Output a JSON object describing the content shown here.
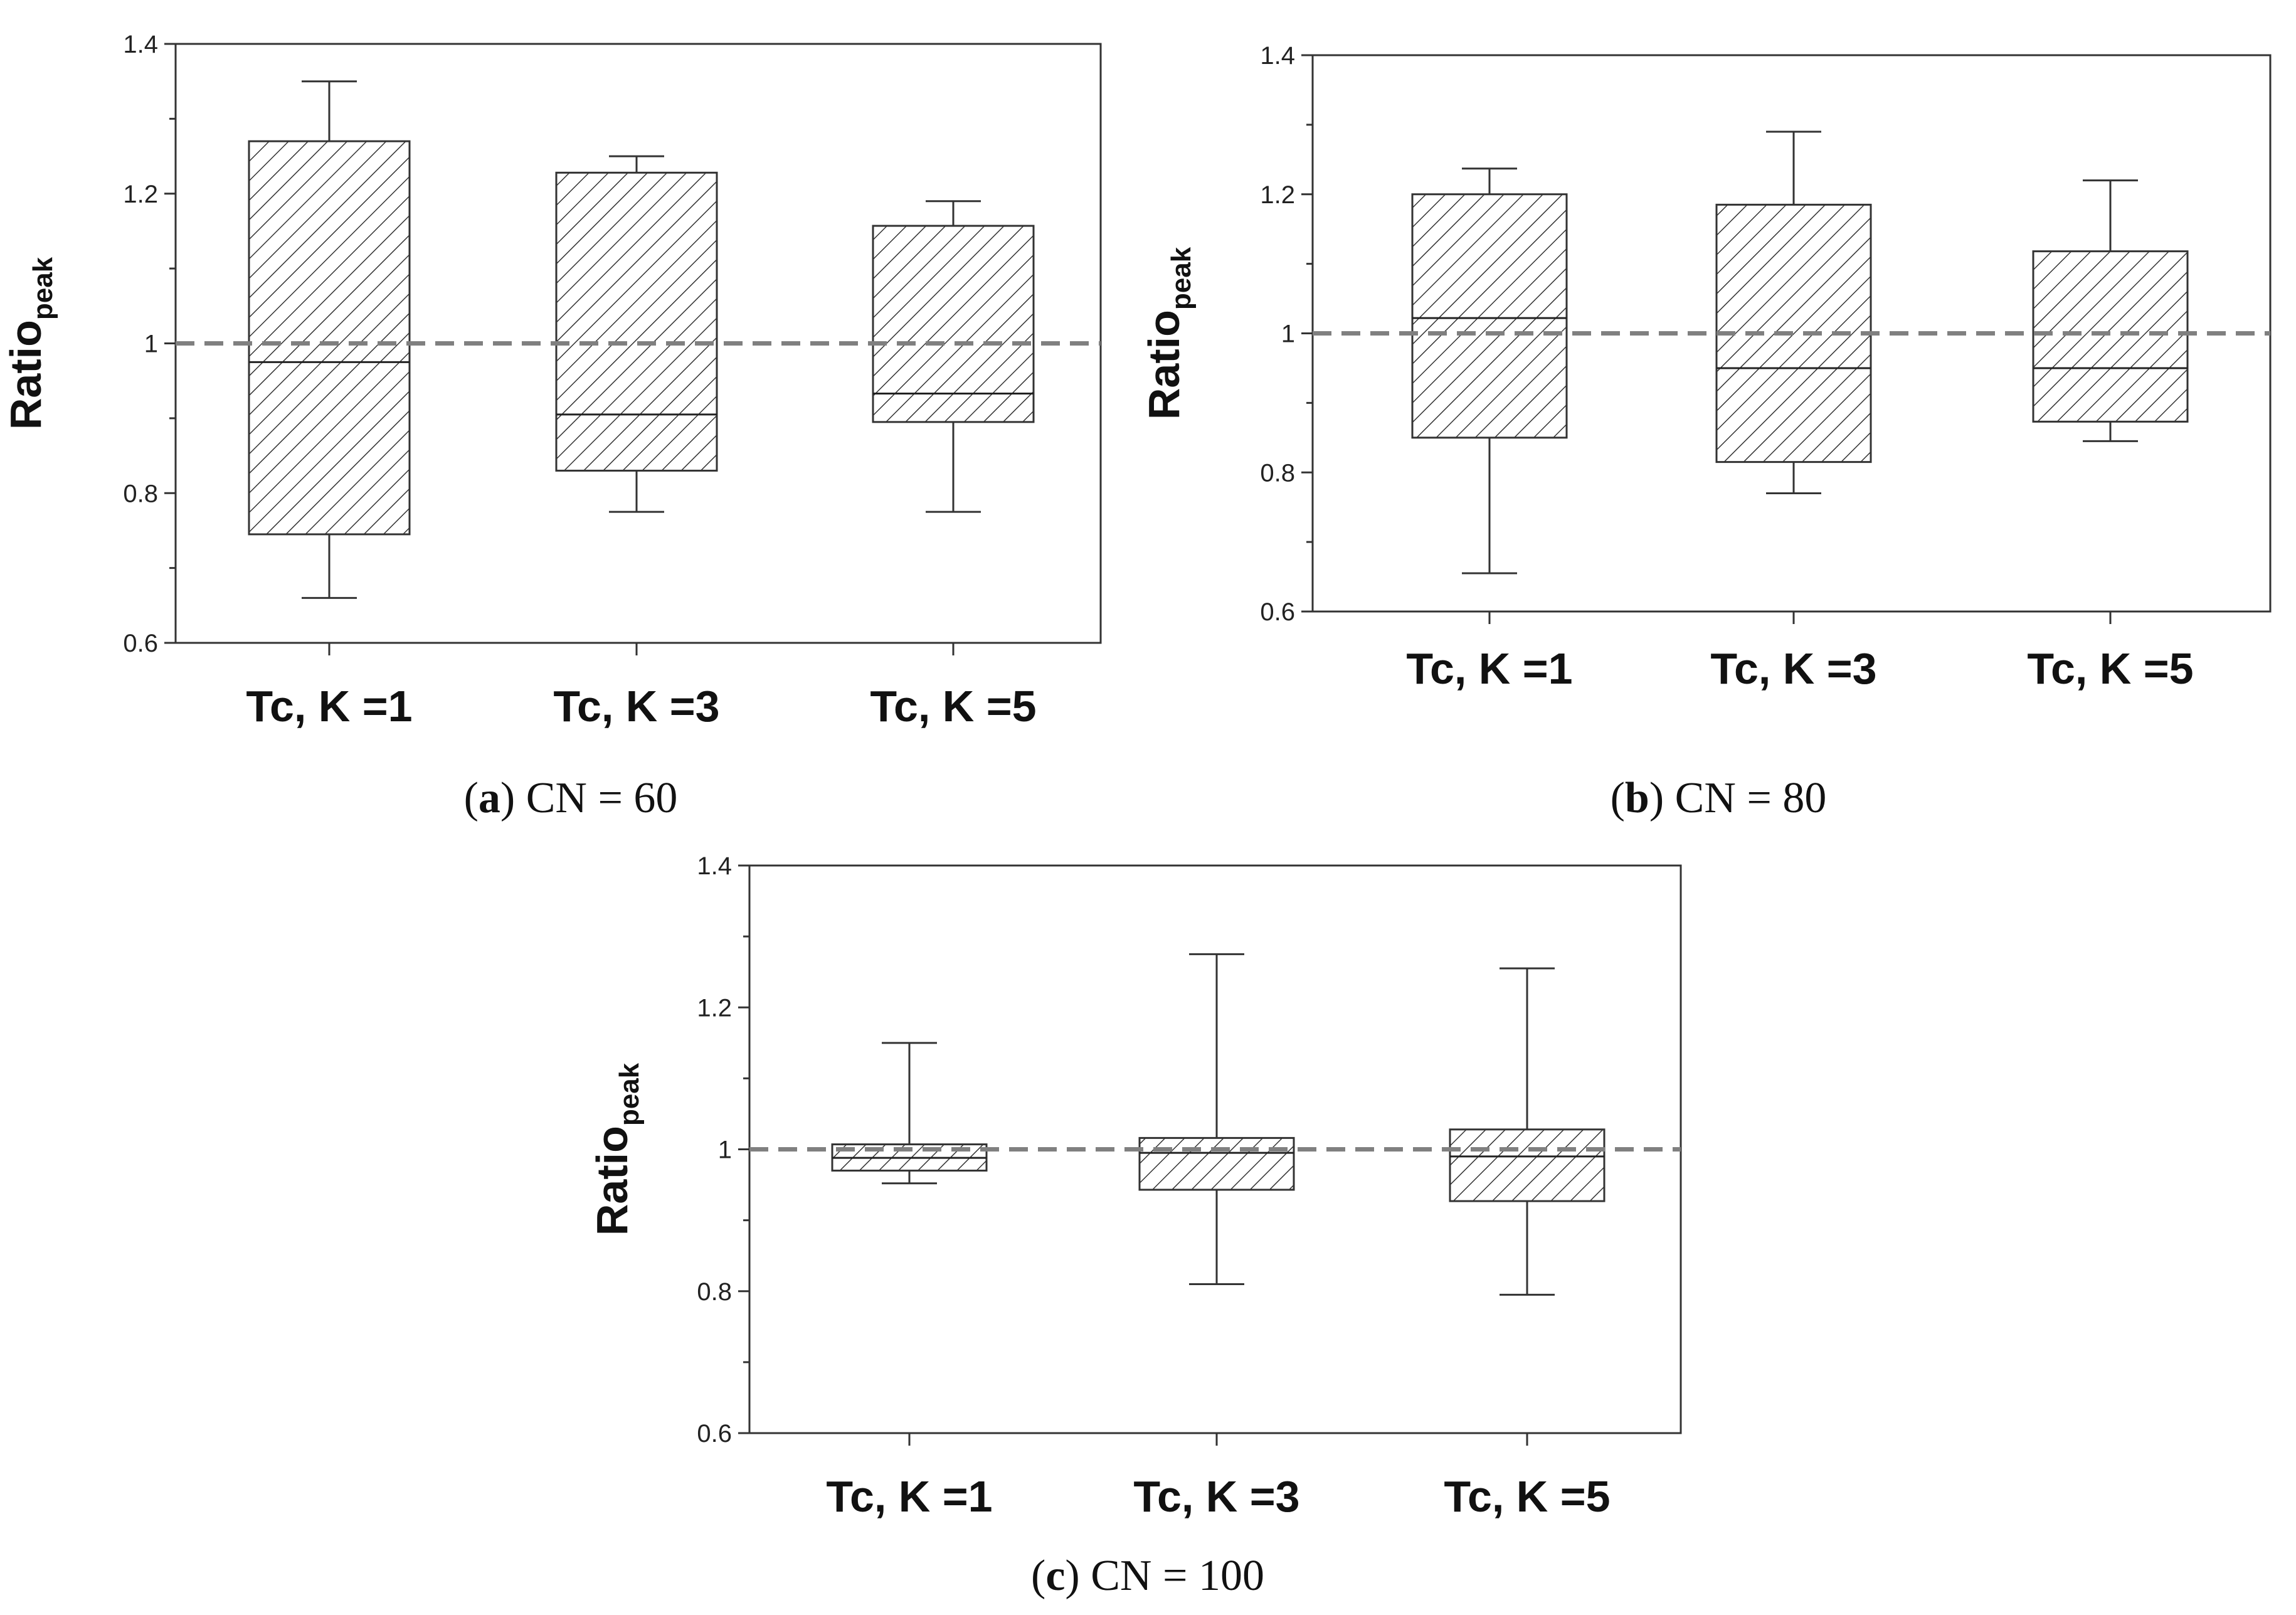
{
  "chart_data": [
    {
      "id": "a",
      "type": "boxplot",
      "caption_letter": "a",
      "caption_text": "CN = 60",
      "ylabel": "Ratio",
      "ylabel_sub": "peak",
      "ylim": [
        0.6,
        1.4
      ],
      "yticks": [
        "0.6",
        "0.8",
        "1",
        "1.2",
        "1.4"
      ],
      "reference_line": 1.0,
      "categories": [
        "Tc, K =1",
        "Tc, K =3",
        "Tc, K =5"
      ],
      "boxes": [
        {
          "min": 0.66,
          "q1": 0.745,
          "median": 0.975,
          "q3": 1.27,
          "max": 1.35
        },
        {
          "min": 0.775,
          "q1": 0.83,
          "median": 0.905,
          "q3": 1.228,
          "max": 1.25
        },
        {
          "min": 0.775,
          "q1": 0.895,
          "median": 0.933,
          "q3": 1.157,
          "max": 1.19
        }
      ]
    },
    {
      "id": "b",
      "type": "boxplot",
      "caption_letter": "b",
      "caption_text": "CN = 80",
      "ylabel": "Ratio",
      "ylabel_sub": "peak",
      "ylim": [
        0.6,
        1.4
      ],
      "yticks": [
        "0.6",
        "0.8",
        "1",
        "1.2",
        "1.4"
      ],
      "reference_line": 1.0,
      "categories": [
        "Tc, K =1",
        "Tc, K =3",
        "Tc, K =5"
      ],
      "boxes": [
        {
          "min": 0.655,
          "q1": 0.85,
          "median": 1.022,
          "q3": 1.2,
          "max": 1.237
        },
        {
          "min": 0.77,
          "q1": 0.815,
          "median": 0.95,
          "q3": 1.185,
          "max": 1.29
        },
        {
          "min": 0.845,
          "q1": 0.873,
          "median": 0.95,
          "q3": 1.118,
          "max": 1.22
        }
      ]
    },
    {
      "id": "c",
      "type": "boxplot",
      "caption_letter": "c",
      "caption_text": "CN = 100",
      "ylabel": "Ratio",
      "ylabel_sub": "peak",
      "ylim": [
        0.6,
        1.4
      ],
      "yticks": [
        "0.6",
        "0.8",
        "1",
        "1.2",
        "1.4"
      ],
      "reference_line": 1.0,
      "categories": [
        "Tc, K =1",
        "Tc, K =3",
        "Tc, K =5"
      ],
      "boxes": [
        {
          "min": 0.952,
          "q1": 0.97,
          "median": 0.988,
          "q3": 1.007,
          "max": 1.15
        },
        {
          "min": 0.81,
          "q1": 0.943,
          "median": 0.995,
          "q3": 1.016,
          "max": 1.275
        },
        {
          "min": 0.795,
          "q1": 0.927,
          "median": 0.99,
          "q3": 1.028,
          "max": 1.255
        }
      ]
    }
  ]
}
